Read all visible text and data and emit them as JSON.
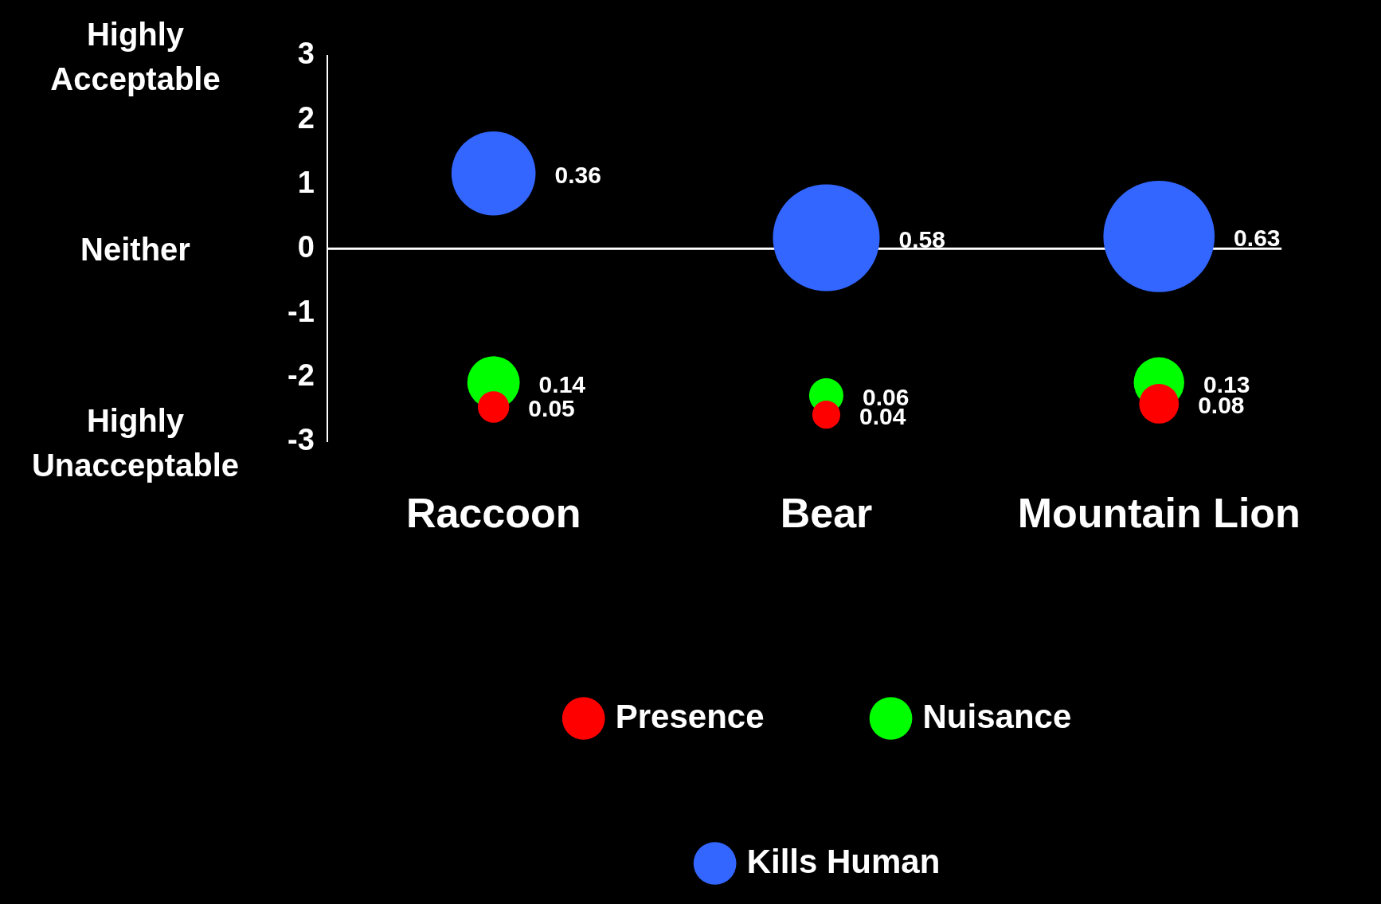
{
  "chart_data": {
    "type": "bubble",
    "categories": [
      "Raccoon",
      "Bear",
      "Mountain Lion"
    ],
    "series": [
      {
        "name": "Presence",
        "color": "#ff0000",
        "values": [
          -2.46,
          -2.58,
          -2.41
        ],
        "sizes": [
          0.05,
          0.04,
          0.08
        ],
        "value_labels": [
          "0.05",
          "0.04",
          "0.08"
        ]
      },
      {
        "name": "Nuisance",
        "color": "#00ff00",
        "values": [
          -2.08,
          -2.28,
          -2.08
        ],
        "sizes": [
          0.14,
          0.06,
          0.13
        ],
        "value_labels": [
          "0.14",
          "0.06",
          "0.13"
        ]
      },
      {
        "name": "Kills Human",
        "color": "#3366ff",
        "values": [
          1.17,
          0.17,
          0.19
        ],
        "sizes": [
          0.36,
          0.58,
          0.63
        ],
        "value_labels": [
          "0.36",
          "0.58",
          "0.63"
        ]
      }
    ],
    "ylim": [
      -3,
      3
    ],
    "yticks": [
      -3,
      -2,
      -1,
      0,
      1,
      2,
      3
    ],
    "ref_lines": [
      {
        "axis": "y",
        "value": 0,
        "color": "#ffffff"
      }
    ],
    "annotations": [
      "Highly Acceptable",
      "Neither",
      "Highly Unacceptable"
    ],
    "grid": false,
    "legend": "bottom"
  }
}
